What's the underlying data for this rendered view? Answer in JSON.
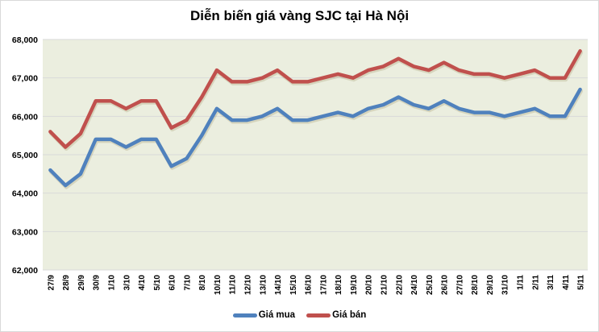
{
  "chart_data": {
    "type": "line",
    "title": "Diễn biến giá vàng SJC tại Hà Nội",
    "xlabel": "",
    "ylabel": "",
    "ylim": [
      62000,
      68000
    ],
    "yticks": [
      "62,000",
      "63,000",
      "64,000",
      "65,000",
      "66,000",
      "67,000",
      "68,000"
    ],
    "grid": true,
    "legend_position": "bottom",
    "background": "#ebeedf",
    "categories": [
      "27/9",
      "28/9",
      "29/9",
      "30/9",
      "1/10",
      "3/10",
      "4/10",
      "5/10",
      "6/10",
      "7/10",
      "8/10",
      "10/10",
      "11/10",
      "12/10",
      "13/10",
      "14/10",
      "15/10",
      "16/10",
      "17/10",
      "18/10",
      "19/10",
      "20/10",
      "21/10",
      "22/10",
      "24/10",
      "25/10",
      "26/10",
      "27/10",
      "28/10",
      "29/10",
      "31/10",
      "1/11",
      "2/11",
      "3/11",
      "4/11",
      "5/11"
    ],
    "series": [
      {
        "name": "Giá mua",
        "color": "#4f81bd",
        "values": [
          64600,
          64200,
          64500,
          65400,
          65400,
          65200,
          65400,
          65400,
          64700,
          64900,
          65500,
          66200,
          65900,
          65900,
          66000,
          66200,
          65900,
          65900,
          66000,
          66100,
          66000,
          66200,
          66300,
          66500,
          66300,
          66200,
          66400,
          66200,
          66100,
          66100,
          66000,
          66100,
          66200,
          66000,
          66000,
          66700
        ]
      },
      {
        "name": "Giá bán",
        "color": "#c0504d",
        "values": [
          65600,
          65200,
          65550,
          66400,
          66400,
          66200,
          66400,
          66400,
          65700,
          65900,
          66500,
          67200,
          66900,
          66900,
          67000,
          67200,
          66900,
          66900,
          67000,
          67100,
          67000,
          67200,
          67300,
          67500,
          67300,
          67200,
          67400,
          67200,
          67100,
          67100,
          67000,
          67100,
          67200,
          67000,
          67000,
          67700
        ]
      }
    ]
  }
}
